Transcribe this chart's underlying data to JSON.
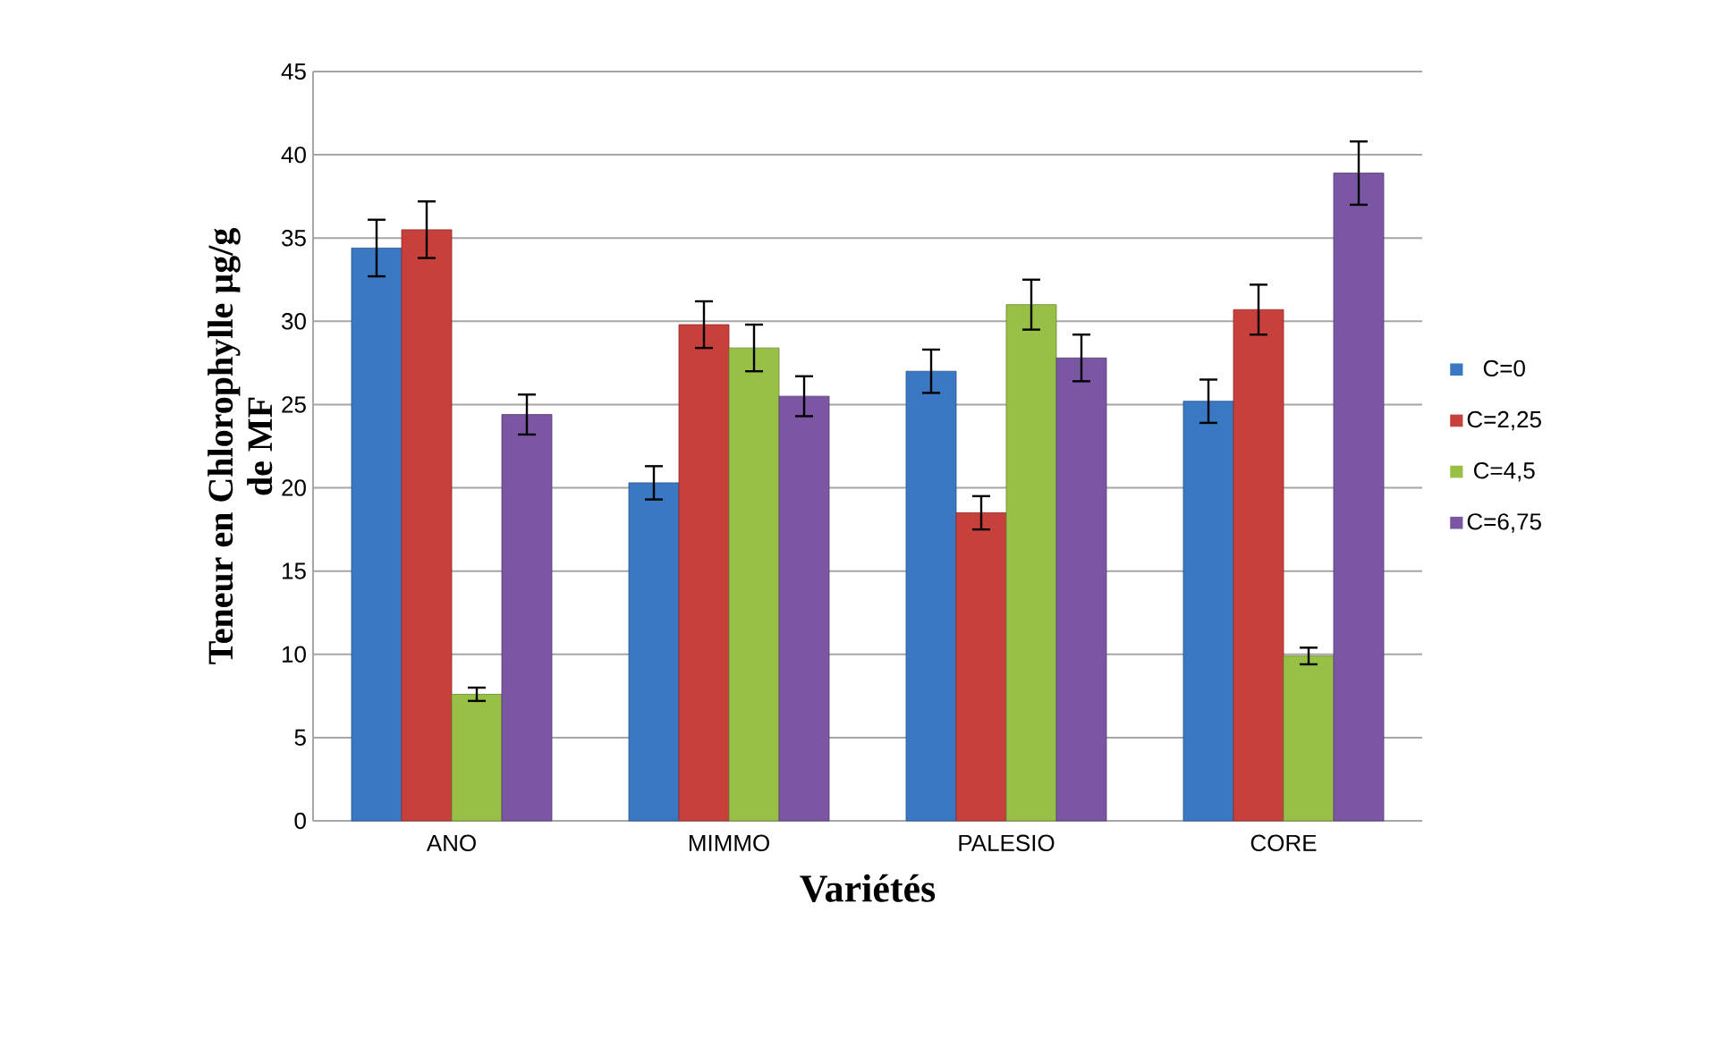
{
  "chart_data": {
    "type": "bar",
    "xlabel": "Variétés",
    "ylabel": "Teneur en Chlorophylle µg/g de MF",
    "categories": [
      "ANO",
      "MIMMO",
      "PALESIO",
      "CORE"
    ],
    "series": [
      {
        "name": "C=0",
        "color": "#3a78c3",
        "values": [
          34.4,
          20.3,
          27,
          25.2
        ],
        "errors": [
          1.7,
          1,
          1.3,
          1.3
        ]
      },
      {
        "name": "C=2,25",
        "color": "#c8403c",
        "values": [
          35.5,
          29.8,
          18.5,
          30.7
        ],
        "errors": [
          1.7,
          1.4,
          1,
          1.5
        ]
      },
      {
        "name": "C=4,5",
        "color": "#98c047",
        "values": [
          7.6,
          28.4,
          31,
          9.9
        ],
        "errors": [
          0.4,
          1.4,
          1.5,
          0.5
        ]
      },
      {
        "name": "C=6,75",
        "color": "#7a56a3",
        "values": [
          24.4,
          25.5,
          27.8,
          38.9
        ],
        "errors": [
          1.2,
          1.2,
          1.4,
          1.9
        ]
      }
    ],
    "ylim": [
      0,
      45
    ],
    "yticks": [
      0,
      5,
      10,
      15,
      20,
      25,
      30,
      35,
      40,
      45
    ],
    "grid": "y",
    "legend": "right"
  }
}
